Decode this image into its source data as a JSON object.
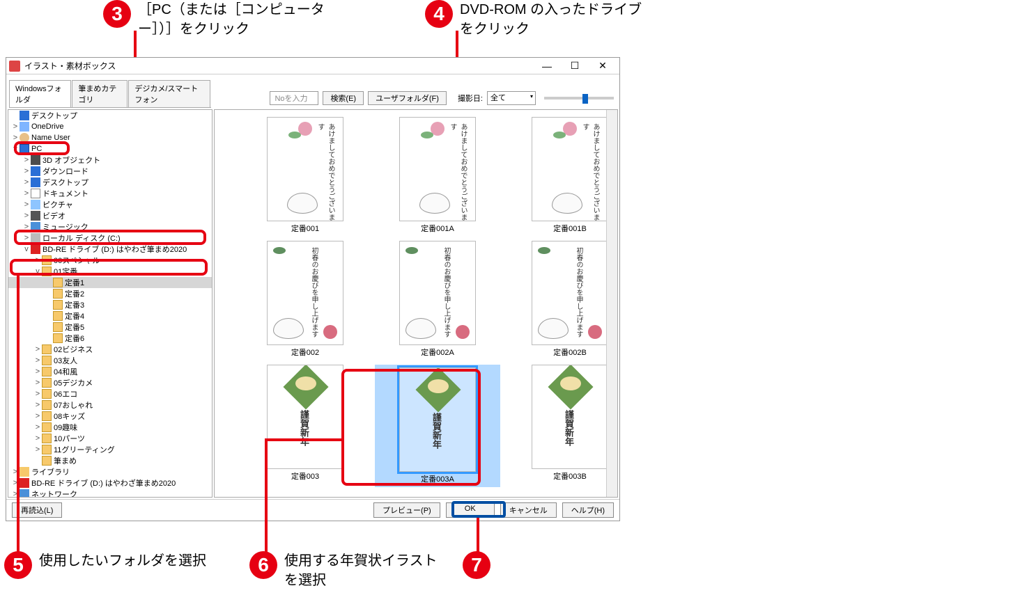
{
  "callouts": {
    "c3": {
      "num": "3",
      "text": "［PC（または［コンピューター］）］をクリック"
    },
    "c4": {
      "num": "4",
      "text": "DVD-ROM の入ったドライブをクリック"
    },
    "c5": {
      "num": "5",
      "text": "使用したいフォルダを選択"
    },
    "c6": {
      "num": "6",
      "text": "使用する年賀状イラストを選択"
    },
    "c7": {
      "num": "7",
      "text": ""
    }
  },
  "window": {
    "title": "イラスト・素材ボックス",
    "minimize": "—",
    "maximize": "☐",
    "close": "✕"
  },
  "toolbar": {
    "no_input_label": "Noを入力",
    "search_btn": "検索(E)",
    "user_folder_btn": "ユーザフォルダ(F)",
    "shoot_date_label": "撮影日:",
    "shoot_date_value": "全て",
    "slider_value": 0.55
  },
  "tabs": [
    {
      "label": "Windowsフォルダ",
      "active": true
    },
    {
      "label": "筆まめカテゴリ",
      "active": false
    },
    {
      "label": "デジカメ/スマートフォン",
      "active": false
    }
  ],
  "tree": [
    {
      "indent": 0,
      "exp": "",
      "icon": "desktop",
      "label": "デスクトップ"
    },
    {
      "indent": 0,
      "exp": ">",
      "icon": "onedrive",
      "label": "OneDrive"
    },
    {
      "indent": 0,
      "exp": ">",
      "icon": "user",
      "label": "Name User"
    },
    {
      "indent": 0,
      "exp": "v",
      "icon": "pc",
      "label": "PC",
      "hl": "pc"
    },
    {
      "indent": 1,
      "exp": ">",
      "icon": "obj3d",
      "label": "3D オブジェクト"
    },
    {
      "indent": 1,
      "exp": ">",
      "icon": "download",
      "label": "ダウンロード"
    },
    {
      "indent": 1,
      "exp": ">",
      "icon": "desktop",
      "label": "デスクトップ"
    },
    {
      "indent": 1,
      "exp": ">",
      "icon": "doc",
      "label": "ドキュメント"
    },
    {
      "indent": 1,
      "exp": ">",
      "icon": "pic",
      "label": "ピクチャ"
    },
    {
      "indent": 1,
      "exp": ">",
      "icon": "vid",
      "label": "ビデオ"
    },
    {
      "indent": 1,
      "exp": ">",
      "icon": "music",
      "label": "ミュージック"
    },
    {
      "indent": 1,
      "exp": ">",
      "icon": "disk",
      "label": "ローカル ディスク (C:)"
    },
    {
      "indent": 1,
      "exp": "v",
      "icon": "drive",
      "label": "BD-RE ドライブ (D:) はやわざ筆まめ2020",
      "hl": "drive"
    },
    {
      "indent": 2,
      "exp": ">",
      "icon": "folder",
      "label": "00スペシャル"
    },
    {
      "indent": 2,
      "exp": "v",
      "icon": "folder",
      "label": "01定番"
    },
    {
      "indent": 3,
      "exp": "",
      "icon": "folder",
      "label": "定番1",
      "selected": true,
      "hl": "teiban1"
    },
    {
      "indent": 3,
      "exp": "",
      "icon": "folder",
      "label": "定番2"
    },
    {
      "indent": 3,
      "exp": "",
      "icon": "folder",
      "label": "定番3"
    },
    {
      "indent": 3,
      "exp": "",
      "icon": "folder",
      "label": "定番4"
    },
    {
      "indent": 3,
      "exp": "",
      "icon": "folder",
      "label": "定番5"
    },
    {
      "indent": 3,
      "exp": "",
      "icon": "folder",
      "label": "定番6"
    },
    {
      "indent": 2,
      "exp": ">",
      "icon": "folder",
      "label": "02ビジネス"
    },
    {
      "indent": 2,
      "exp": ">",
      "icon": "folder",
      "label": "03友人"
    },
    {
      "indent": 2,
      "exp": ">",
      "icon": "folder",
      "label": "04和風"
    },
    {
      "indent": 2,
      "exp": ">",
      "icon": "folder",
      "label": "05デジカメ"
    },
    {
      "indent": 2,
      "exp": ">",
      "icon": "folder",
      "label": "06エコ"
    },
    {
      "indent": 2,
      "exp": ">",
      "icon": "folder",
      "label": "07おしゃれ"
    },
    {
      "indent": 2,
      "exp": ">",
      "icon": "folder",
      "label": "08キッズ"
    },
    {
      "indent": 2,
      "exp": ">",
      "icon": "folder",
      "label": "09趣味"
    },
    {
      "indent": 2,
      "exp": ">",
      "icon": "folder",
      "label": "10パーツ"
    },
    {
      "indent": 2,
      "exp": ">",
      "icon": "folder",
      "label": "11グリーティング"
    },
    {
      "indent": 2,
      "exp": "",
      "icon": "folder",
      "label": "筆まめ"
    },
    {
      "indent": 0,
      "exp": ">",
      "icon": "lib",
      "label": "ライブラリ"
    },
    {
      "indent": 0,
      "exp": ">",
      "icon": "drive",
      "label": "BD-RE ドライブ (D:) はやわざ筆まめ2020"
    },
    {
      "indent": 0,
      "exp": ">",
      "icon": "net",
      "label": "ネットワーク"
    }
  ],
  "thumbnails": [
    {
      "name": "定番001",
      "style": "a"
    },
    {
      "name": "定番001A",
      "style": "a"
    },
    {
      "name": "定番001B",
      "style": "a"
    },
    {
      "name": "定番002",
      "style": "b"
    },
    {
      "name": "定番002A",
      "style": "b"
    },
    {
      "name": "定番002B",
      "style": "b"
    },
    {
      "name": "定番003",
      "style": "c"
    },
    {
      "name": "定番003A",
      "style": "c",
      "selected": true
    },
    {
      "name": "定番003B",
      "style": "c"
    }
  ],
  "footer": {
    "reload": "再読込(L)",
    "preview": "プレビュー(P)",
    "ok": "OK",
    "cancel": "キャンセル",
    "help": "ヘルプ(H)"
  },
  "colors": {
    "callout_red": "#e60012",
    "callout_blue": "#004ea2"
  }
}
